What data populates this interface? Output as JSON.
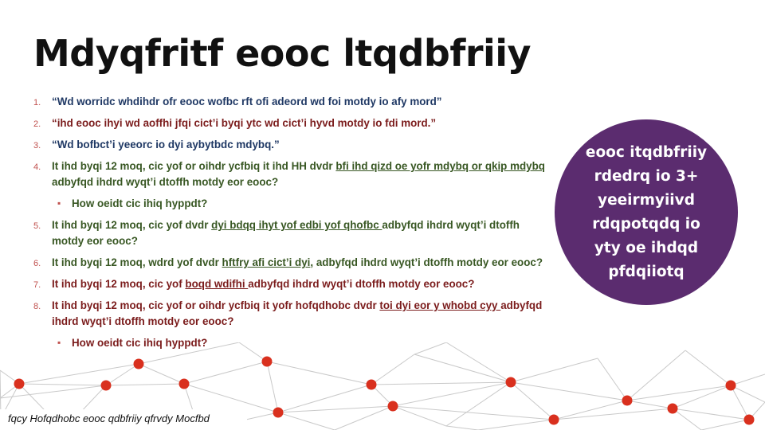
{
  "slide": {
    "title": "Mdyqfritf eooc ltqdbfriiy",
    "items": [
      {
        "num": "1.",
        "color": "navy",
        "parts": [
          {
            "text": "“Wd worridc whdihdr ofr eooc wofbc rft ofi adeord wd foi motdy io afy mord”"
          }
        ]
      },
      {
        "num": "2.",
        "color": "red",
        "parts": [
          {
            "text": "“ihd eooc ihyi wd aoffhi jfqi cict’i byqi ytc wd cict’i hyvd motdy io fdi mord.”"
          }
        ]
      },
      {
        "num": "3.",
        "color": "navy",
        "parts": [
          {
            "text": "“Wd bofbct’i yeeorc io dyi aybytbdc mdybq.”"
          }
        ]
      },
      {
        "num": "4.",
        "color": "green",
        "parts": [
          {
            "text": "It ihd byqi 12 moq, cic  yof or oihdr ycfbiq it ihd HH dvdr "
          },
          {
            "text": "bfi ihd qizd  oe yofr mdybq or qkip mdybq ",
            "link": true
          },
          {
            "text": "adbyfqd ihdrd wyqt’i dtoffh motdy eor eooc?"
          }
        ]
      },
      {
        "num": "",
        "sub": true,
        "color": "green",
        "parts": [
          {
            "text": "How oeidt cic ihiq hyppdt?"
          }
        ]
      },
      {
        "num": "5.",
        "color": "green",
        "parts": [
          {
            "text": "It ihd byqi 12 moq, cic  yof dvdr "
          },
          {
            "text": "dyi bdqq ihyt yof edbi yof qhofbc ",
            "link": true
          },
          {
            "text": "adbyfqd ihdrd wyqt’i dtoffh motdy eor eooc?"
          }
        ]
      },
      {
        "num": "6.",
        "color": "green",
        "parts": [
          {
            "text": "It ihd byqi 12 moq, wdrd yof dvdr "
          },
          {
            "text": "hftfry afi cict’i dyi",
            "link": true
          },
          {
            "text": ", adbyfqd ihdrd wyqt’i dtoffh motdy eor eooc?"
          }
        ]
      },
      {
        "num": "7.",
        "color": "red",
        "parts": [
          {
            "text": "It ihd byqi 12 moq, cic  yof "
          },
          {
            "text": "boqd wdifhi ",
            "link": true
          },
          {
            "text": "adbyfqd ihdrd wyqt’i dtoffh motdy eor eooc?"
          }
        ]
      },
      {
        "num": "8.",
        "color": "red",
        "parts": [
          {
            "text": "It ihd byqi 12 moq, cic  yof or oihdr ycfbiq it yofr hofqdhobc dvdr "
          },
          {
            "text": "toi dyi eor y whobd cyy ",
            "link": true
          },
          {
            "text": "adbyfqd ihdrd wyqt’i dtoffh motdy eor eooc?"
          }
        ]
      },
      {
        "num": "",
        "sub": true,
        "color": "red",
        "parts": [
          {
            "text": "How oeidt cic ihiq hyppdt?"
          }
        ]
      }
    ],
    "circle_text": "eooc itqdbfriiy rdedrq io 3+ yeeirmyiivd rdqpotqdq io yty oe ihdqd pfdqiiotq",
    "caption": "fqcy Hofqdhobc eooc qdbfriiy qfrvdy Mocfbd"
  },
  "colors": {
    "navy": "#1f3864",
    "green": "#385723",
    "red": "#7b1c1c",
    "accent_number": "#c0504d",
    "circle": "#5b2c6f",
    "network_line": "#c9c9c9",
    "network_node": "#d9301e"
  }
}
